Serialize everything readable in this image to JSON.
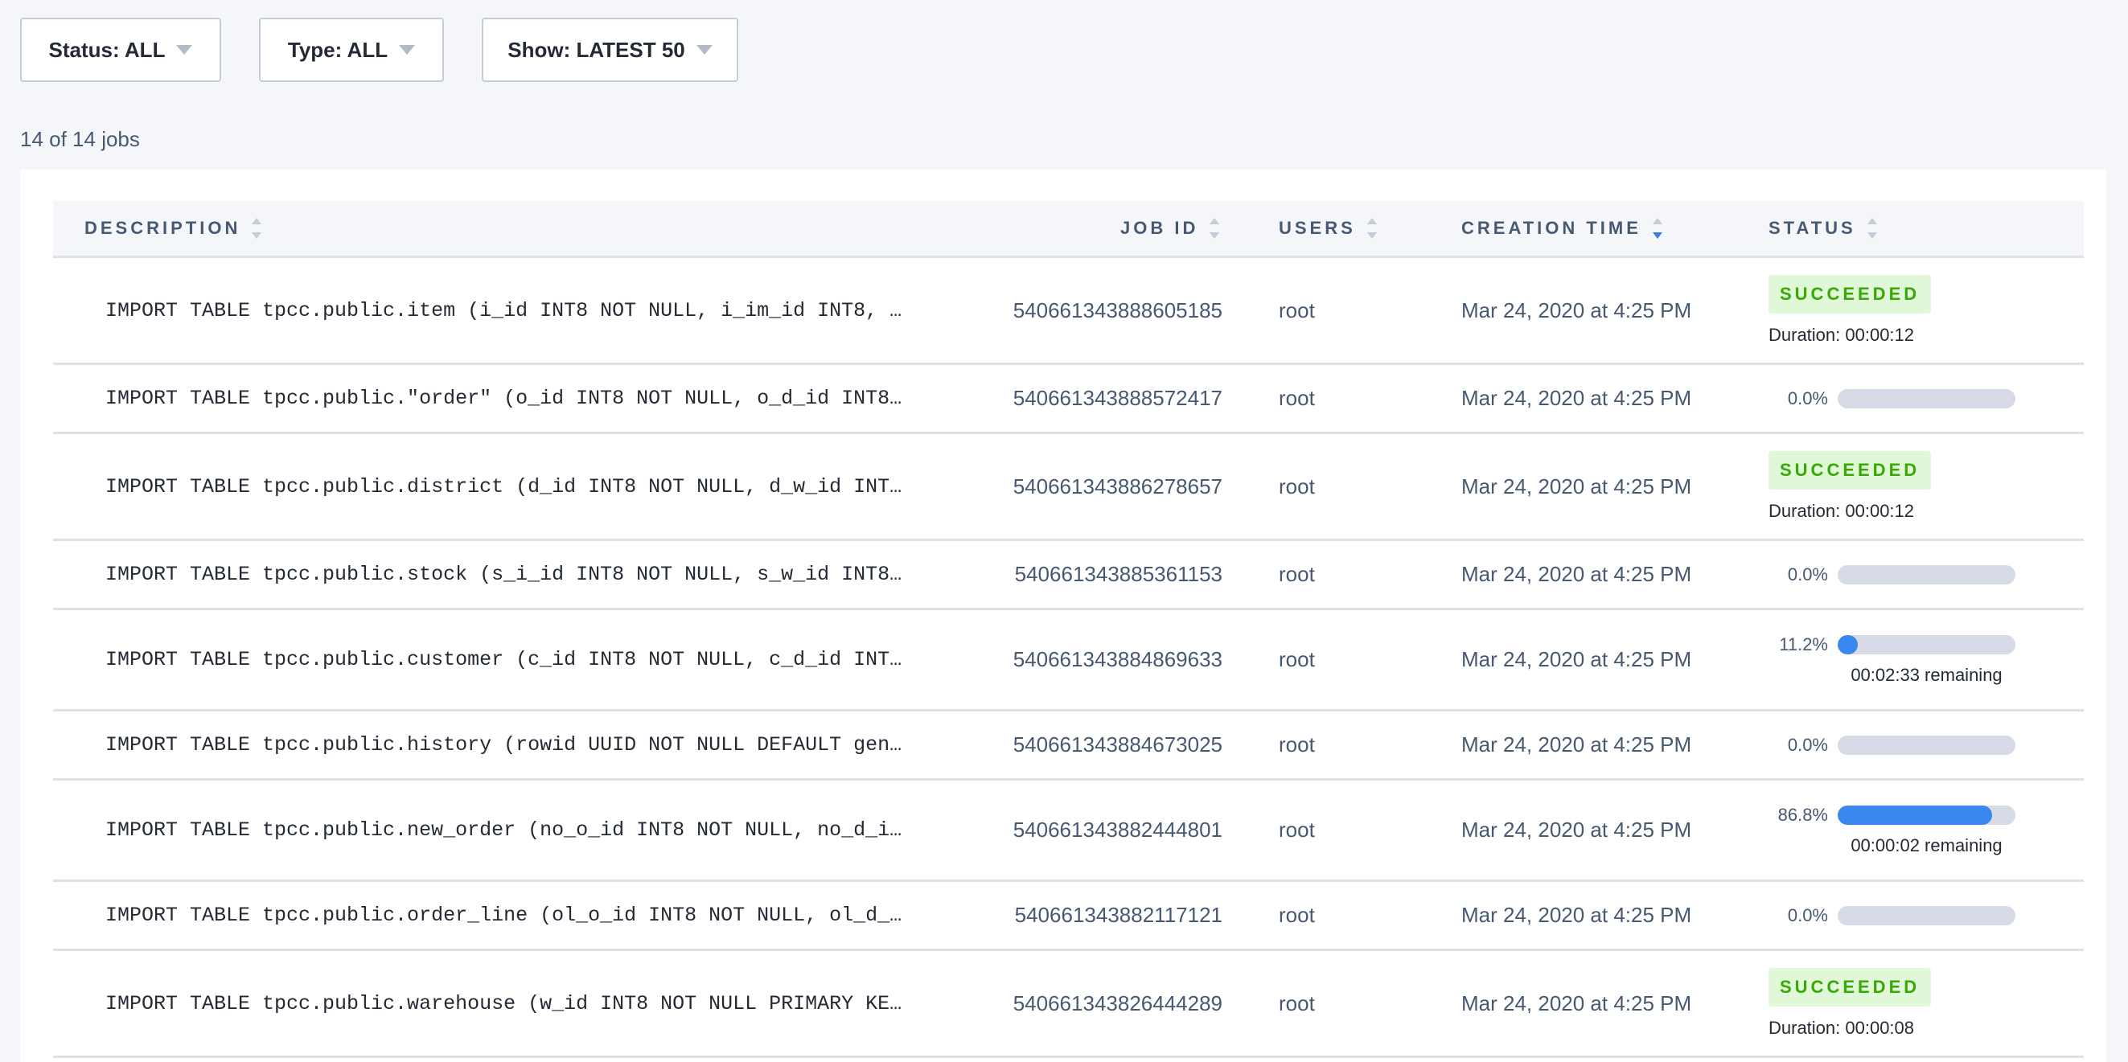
{
  "filters": [
    {
      "label": "Status: ALL"
    },
    {
      "label": "Type: ALL"
    },
    {
      "label": "Show: LATEST 50"
    }
  ],
  "job_count": "14 of 14 jobs",
  "columns": [
    {
      "label": "DESCRIPTION",
      "sort": "none"
    },
    {
      "label": "JOB ID",
      "sort": "none"
    },
    {
      "label": "USERS",
      "sort": "none"
    },
    {
      "label": "CREATION TIME",
      "sort": "descending"
    },
    {
      "label": "STATUS",
      "sort": "none"
    }
  ],
  "colors": {
    "accent": "#3a87f0",
    "success_bg": "#e0f7d8",
    "success_text": "#37a806",
    "bar_track": "#d6dbe7"
  },
  "jobs": [
    {
      "description": "IMPORT TABLE tpcc.public.item (i_id INT8 NOT NULL, i_im_id INT8, …",
      "job_id": "540661343888605185",
      "user": "root",
      "created": "Mar 24, 2020 at 4:25 PM",
      "status": "SUCCEEDED",
      "duration": "Duration: 00:00:12"
    },
    {
      "description": "IMPORT TABLE tpcc.public.\"order\" (o_id INT8 NOT NULL, o_d_id INT8…",
      "job_id": "540661343888572417",
      "user": "root",
      "created": "Mar 24, 2020 at 4:25 PM",
      "progress_label": "0.0%",
      "progress": 0.0
    },
    {
      "description": "IMPORT TABLE tpcc.public.district (d_id INT8 NOT NULL, d_w_id INT…",
      "job_id": "540661343886278657",
      "user": "root",
      "created": "Mar 24, 2020 at 4:25 PM",
      "status": "SUCCEEDED",
      "duration": "Duration: 00:00:12"
    },
    {
      "description": "IMPORT TABLE tpcc.public.stock (s_i_id INT8 NOT NULL, s_w_id INT8…",
      "job_id": "540661343885361153",
      "user": "root",
      "created": "Mar 24, 2020 at 4:25 PM",
      "progress_label": "0.0%",
      "progress": 0.0
    },
    {
      "description": "IMPORT TABLE tpcc.public.customer (c_id INT8 NOT NULL, c_d_id INT…",
      "job_id": "540661343884869633",
      "user": "root",
      "created": "Mar 24, 2020 at 4:25 PM",
      "progress_label": "11.2%",
      "progress": 11.2,
      "remaining": "00:02:33 remaining"
    },
    {
      "description": "IMPORT TABLE tpcc.public.history (rowid UUID NOT NULL DEFAULT gen…",
      "job_id": "540661343884673025",
      "user": "root",
      "created": "Mar 24, 2020 at 4:25 PM",
      "progress_label": "0.0%",
      "progress": 0.0
    },
    {
      "description": "IMPORT TABLE tpcc.public.new_order (no_o_id INT8 NOT NULL, no_d_i…",
      "job_id": "540661343882444801",
      "user": "root",
      "created": "Mar 24, 2020 at 4:25 PM",
      "progress_label": "86.8%",
      "progress": 86.8,
      "remaining": "00:00:02 remaining"
    },
    {
      "description": "IMPORT TABLE tpcc.public.order_line (ol_o_id INT8 NOT NULL, ol_d_…",
      "job_id": "540661343882117121",
      "user": "root",
      "created": "Mar 24, 2020 at 4:25 PM",
      "progress_label": "0.0%",
      "progress": 0.0
    },
    {
      "description": "IMPORT TABLE tpcc.public.warehouse (w_id INT8 NOT NULL PRIMARY KE…",
      "job_id": "540661343826444289",
      "user": "root",
      "created": "Mar 24, 2020 at 4:25 PM",
      "status": "SUCCEEDED",
      "duration": "Duration: 00:00:08"
    }
  ]
}
